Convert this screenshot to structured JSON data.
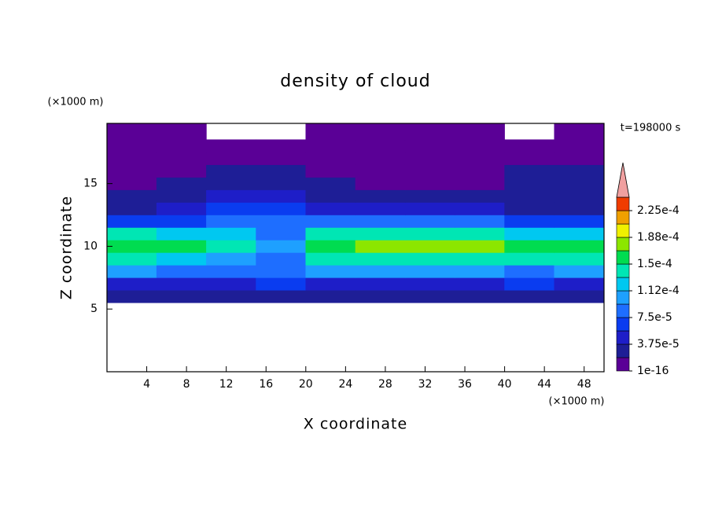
{
  "chart_data": {
    "type": "contour",
    "title": "density of cloud",
    "xlabel": "X coordinate",
    "ylabel": "Z coordinate",
    "x_unit": "(×1000 m)",
    "y_unit": "(×1000 m)",
    "time_label": "t=198000 s",
    "xlim": [
      0,
      50
    ],
    "ylim": [
      0,
      19.8
    ],
    "xticks": [
      4,
      8,
      12,
      16,
      20,
      24,
      28,
      32,
      36,
      40,
      44,
      48
    ],
    "yticks": [
      5,
      10,
      15
    ],
    "x": [
      2.5,
      7.5,
      12.5,
      17.5,
      22.5,
      27.5,
      32.5,
      37.5,
      42.5,
      47.5
    ],
    "y": [
      6,
      7,
      8,
      9,
      10,
      11,
      12,
      13,
      14,
      15,
      16,
      17,
      18,
      19
    ],
    "z": [
      [
        2e-05,
        2e-05,
        2e-05,
        2e-05,
        2e-05,
        2e-05,
        2e-05,
        2e-05,
        2e-05,
        2e-05
      ],
      [
        5e-05,
        5e-05,
        5e-05,
        6e-05,
        5e-05,
        5e-05,
        5e-05,
        5e-05,
        6e-05,
        5e-05
      ],
      [
        0.0001,
        9e-05,
        8e-05,
        8e-05,
        0.0001,
        0.0001,
        0.0001,
        0.0001,
        9e-05,
        0.0001
      ],
      [
        0.00014,
        0.00013,
        0.00011,
        9e-05,
        0.00014,
        0.000145,
        0.000145,
        0.000145,
        0.000135,
        0.00014
      ],
      [
        0.00016,
        0.000155,
        0.00014,
        0.0001,
        0.00016,
        0.00017,
        0.00017,
        0.00017,
        0.00016,
        0.00016
      ],
      [
        0.000135,
        0.00013,
        0.00012,
        9e-05,
        0.000135,
        0.00014,
        0.00014,
        0.000135,
        0.00012,
        0.00013
      ],
      [
        7e-05,
        7e-05,
        8e-05,
        8e-05,
        8e-05,
        9e-05,
        9e-05,
        8e-05,
        7e-05,
        6e-05
      ],
      [
        3.5e-05,
        4e-05,
        6e-05,
        6e-05,
        5e-05,
        4e-05,
        4e-05,
        4e-05,
        3.5e-05,
        3e-05
      ],
      [
        2.5e-05,
        2.5e-05,
        4e-05,
        4e-05,
        2.5e-05,
        2.5e-05,
        2e-05,
        2e-05,
        2e-05,
        2e-05
      ],
      [
        1.5e-05,
        2e-05,
        2.5e-05,
        2.5e-05,
        2e-05,
        1.5e-05,
        1.5e-05,
        1.5e-05,
        2e-05,
        2e-05
      ],
      [
        1.2e-05,
        1.5e-05,
        2e-05,
        2e-05,
        1.2e-05,
        1e-05,
        1e-05,
        1.2e-05,
        2e-05,
        2e-05
      ],
      [
        1e-05,
        1e-05,
        1.5e-05,
        1e-05,
        1e-05,
        8e-06,
        8e-06,
        1e-05,
        1e-05,
        1.5e-05
      ],
      [
        8e-06,
        8e-06,
        1e-05,
        8e-06,
        8e-06,
        8e-06,
        8e-06,
        8e-06,
        8e-06,
        8e-06
      ],
      [
        5e-06,
        5e-06,
        null,
        null,
        5e-06,
        5e-06,
        5e-06,
        5e-06,
        null,
        5e-06
      ]
    ],
    "levels": [
      1e-16,
      1.875e-05,
      3.75e-05,
      5.625e-05,
      7.5e-05,
      9.375e-05,
      0.0001125,
      0.00013125,
      0.00015,
      0.00016875,
      0.0001875,
      0.00020625,
      0.000225,
      0.00024375
    ],
    "colors": [
      "#5a0096",
      "#1e1e96",
      "#1e1ec8",
      "#0a3cf0",
      "#1e6eff",
      "#1ea0ff",
      "#00c8f0",
      "#00e6b4",
      "#00dc50",
      "#8ce600",
      "#f0f000",
      "#f0a000",
      "#f03c00"
    ],
    "over_color": "#f0a0a0",
    "colorbar_ticks": [
      {
        "value": 1e-16,
        "label": "1e-16"
      },
      {
        "value": 3.75e-05,
        "label": "3.75e-5"
      },
      {
        "value": 7.5e-05,
        "label": "7.5e-5"
      },
      {
        "value": 0.0001125,
        "label": "1.12e-4"
      },
      {
        "value": 0.00015,
        "label": "1.5e-4"
      },
      {
        "value": 0.0001875,
        "label": "1.88e-4"
      },
      {
        "value": 0.000225,
        "label": "2.25e-4"
      }
    ]
  }
}
